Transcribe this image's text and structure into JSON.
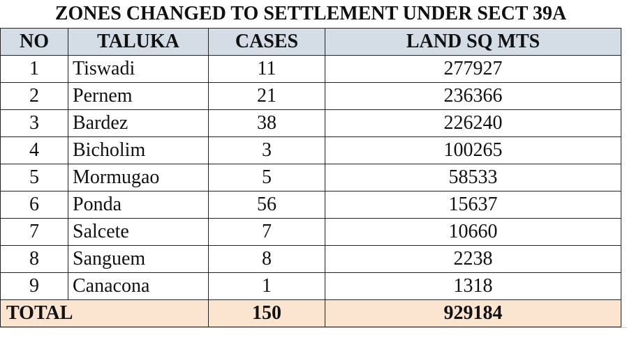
{
  "title": "ZONES CHANGED TO SETTLEMENT UNDER SECT 39A",
  "table": {
    "header": [
      "NO",
      "TALUKA",
      "CASES",
      "LAND SQ MTS"
    ],
    "rows": [
      [
        1,
        "Tiswadi",
        11,
        277927
      ],
      [
        2,
        "Pernem",
        21,
        236366
      ],
      [
        3,
        "Bardez",
        38,
        226240
      ],
      [
        4,
        "Bicholim",
        3,
        100265
      ],
      [
        5,
        "Mormugao",
        5,
        58533
      ],
      [
        6,
        "Ponda",
        56,
        15637
      ],
      [
        7,
        "Salcete",
        7,
        10660
      ],
      [
        8,
        "Sanguem",
        8,
        2238
      ],
      [
        9,
        "Canacona",
        1,
        1318
      ]
    ],
    "total": {
      "label": "TOTAL",
      "cases": 150,
      "land": 929184
    }
  }
}
